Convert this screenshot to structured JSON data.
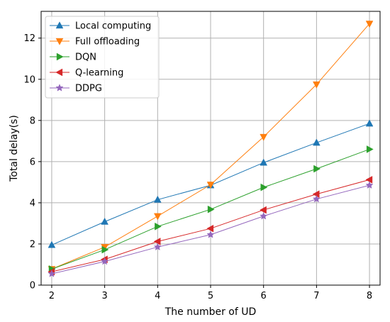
{
  "chart_data": {
    "type": "line",
    "title": "",
    "xlabel": "The number of UD",
    "ylabel": "Total delay(s)",
    "x": [
      2,
      3,
      4,
      5,
      6,
      7,
      8
    ],
    "xlim": [
      1.8,
      8.2
    ],
    "ylim": [
      0,
      13.3
    ],
    "xticks": [
      2,
      3,
      4,
      5,
      6,
      7,
      8
    ],
    "yticks": [
      0,
      2,
      4,
      6,
      8,
      10,
      12
    ],
    "grid": true,
    "legend_position": "top-left",
    "series": [
      {
        "name": "Local computing",
        "color": "#1f77b4",
        "marker": "triangle-up",
        "values": [
          1.95,
          3.08,
          4.15,
          4.85,
          5.95,
          6.92,
          7.85
        ]
      },
      {
        "name": "Full offloading",
        "color": "#ff7f0e",
        "marker": "triangle-down",
        "values": [
          0.78,
          1.85,
          3.35,
          4.88,
          7.2,
          9.75,
          12.7
        ]
      },
      {
        "name": "DQN",
        "color": "#2ca02c",
        "marker": "triangle-right",
        "values": [
          0.78,
          1.72,
          2.85,
          3.68,
          4.75,
          5.65,
          6.6
        ]
      },
      {
        "name": "Q-learning",
        "color": "#d62728",
        "marker": "triangle-left",
        "values": [
          0.65,
          1.25,
          2.12,
          2.75,
          3.65,
          4.42,
          5.12
        ]
      },
      {
        "name": "DDPG",
        "color": "#9467bd",
        "marker": "star",
        "values": [
          0.55,
          1.15,
          1.85,
          2.45,
          3.35,
          4.18,
          4.85
        ]
      }
    ]
  }
}
